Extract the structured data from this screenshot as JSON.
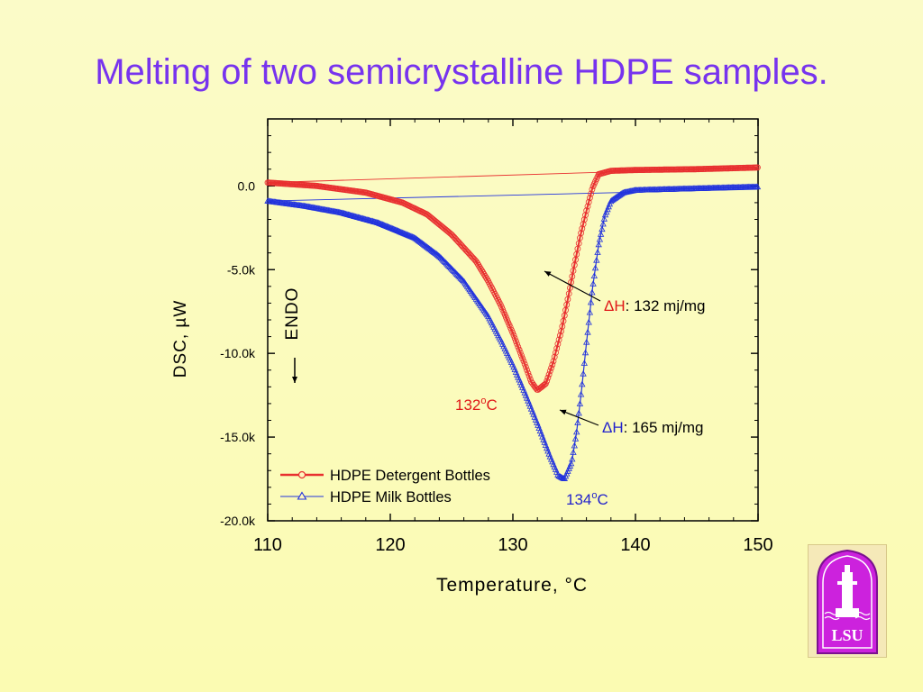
{
  "slide": {
    "title": "Melting of two semicrystalline HDPE samples."
  },
  "logo": {
    "text": "LSU",
    "icon": "lsu-tower-logo"
  },
  "colors": {
    "detergent": "#e83030",
    "milk": "#2233dd",
    "title": "#7733ee"
  },
  "chart_data": {
    "type": "line",
    "xlabel": "Temperature, °C",
    "ylabel": "DSC, µW",
    "xlim": [
      110,
      150
    ],
    "ylim": [
      -20000,
      4000
    ],
    "xticks": [
      110,
      120,
      130,
      140,
      150
    ],
    "xtick_labels": [
      "110",
      "120",
      "130",
      "140",
      "150"
    ],
    "yticks": [
      0,
      -5000,
      -10000,
      -15000,
      -20000
    ],
    "ytick_labels": [
      "0.0",
      "-5.0k",
      "-10.0k",
      "-15.0k",
      "-20.0k"
    ],
    "grid": false,
    "legend": "lower-left",
    "series": [
      {
        "name": "HDPE Detergent Bottles",
        "marker": "circle",
        "x": [
          110,
          114,
          118,
          121,
          123,
          125,
          127,
          128,
          129,
          130,
          131,
          131.5,
          132,
          132.7,
          133.3,
          134,
          134.5,
          135,
          135.5,
          136,
          136.5,
          137,
          138,
          140,
          145,
          150
        ],
        "y": [
          200,
          0,
          -400,
          -1000,
          -1700,
          -2900,
          -4500,
          -5700,
          -7100,
          -8800,
          -10700,
          -11700,
          -12200,
          -11800,
          -10500,
          -8500,
          -6700,
          -4800,
          -3000,
          -1500,
          -100,
          700,
          900,
          950,
          1000,
          1100
        ]
      },
      {
        "name": "HDPE Milk Bottles",
        "marker": "triangle",
        "x": [
          110,
          113,
          116,
          119,
          122,
          124,
          126,
          128,
          129,
          130,
          131,
          132,
          133,
          133.7,
          134.2,
          134.8,
          135.2,
          135.6,
          136,
          136.5,
          137,
          137.5,
          138,
          139,
          140,
          145,
          150
        ],
        "y": [
          -900,
          -1200,
          -1600,
          -2200,
          -3100,
          -4200,
          -5700,
          -7800,
          -9200,
          -10700,
          -12400,
          -14200,
          -16100,
          -17300,
          -17500,
          -16500,
          -14700,
          -12200,
          -9400,
          -6100,
          -3500,
          -1800,
          -900,
          -400,
          -250,
          -150,
          -50
        ]
      }
    ],
    "baselines": [
      {
        "series": "HDPE Detergent Bottles",
        "x": [
          110,
          150
        ],
        "y": [
          200,
          1100
        ]
      },
      {
        "series": "HDPE Milk Bottles",
        "x": [
          110,
          150
        ],
        "y": [
          -900,
          -200
        ]
      }
    ],
    "annotations": {
      "endo": "ENDO",
      "peak_detergent": {
        "value": "132",
        "deg": "o",
        "unit": "C"
      },
      "peak_milk": {
        "value": "134",
        "deg": "o",
        "unit": "C"
      },
      "dh_detergent": {
        "symbol": "ΔH",
        "text": ": 132 mj/mg"
      },
      "dh_milk": {
        "symbol": "ΔH",
        "text": ": 165 mj/mg"
      }
    }
  }
}
